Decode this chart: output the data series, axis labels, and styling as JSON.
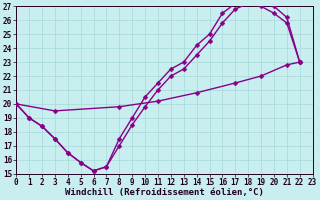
{
  "xlabel": "Windchill (Refroidissement éolien,°C)",
  "xlim": [
    0,
    23
  ],
  "ylim": [
    15,
    27
  ],
  "xticks": [
    0,
    1,
    2,
    3,
    4,
    5,
    6,
    7,
    8,
    9,
    10,
    11,
    12,
    13,
    14,
    15,
    16,
    17,
    18,
    19,
    20,
    21,
    22,
    23
  ],
  "yticks": [
    15,
    16,
    17,
    18,
    19,
    20,
    21,
    22,
    23,
    24,
    25,
    26,
    27
  ],
  "bg_color": "#c8eef0",
  "line_color": "#880088",
  "grid_color": "#a8d8d8",
  "curve1_x": [
    0,
    1,
    2,
    3,
    4,
    5,
    6,
    7,
    8,
    9,
    10,
    11,
    12,
    13,
    14,
    15,
    16,
    17,
    18,
    19,
    20,
    21,
    22
  ],
  "curve1_y": [
    20,
    19,
    18.4,
    17.5,
    16.5,
    15.8,
    15.2,
    15.5,
    17.5,
    19.0,
    20.5,
    21.5,
    22.5,
    23.0,
    24.2,
    25.0,
    26.5,
    27.2,
    27.5,
    27.2,
    27.0,
    26.2,
    23.0
  ],
  "curve2_x": [
    0,
    1,
    2,
    3,
    4,
    5,
    6,
    7,
    8,
    9,
    10,
    11,
    12,
    13,
    14,
    15,
    16,
    17,
    18,
    19,
    20,
    21,
    22
  ],
  "curve2_y": [
    20,
    19,
    18.4,
    17.5,
    16.5,
    15.8,
    15.2,
    15.5,
    17.0,
    18.5,
    19.8,
    21.0,
    22.0,
    22.5,
    23.5,
    24.5,
    25.8,
    26.8,
    27.2,
    27.0,
    26.5,
    25.8,
    23.0
  ],
  "curve3_x": [
    0,
    3,
    8,
    11,
    14,
    17,
    19,
    21,
    22
  ],
  "curve3_y": [
    20.0,
    19.5,
    19.8,
    20.2,
    20.8,
    21.5,
    22.0,
    22.8,
    23.0
  ],
  "marker": "D",
  "marker_size": 2.5,
  "line_width": 1.0,
  "tick_fontsize": 5.5,
  "xlabel_fontsize": 6.5
}
